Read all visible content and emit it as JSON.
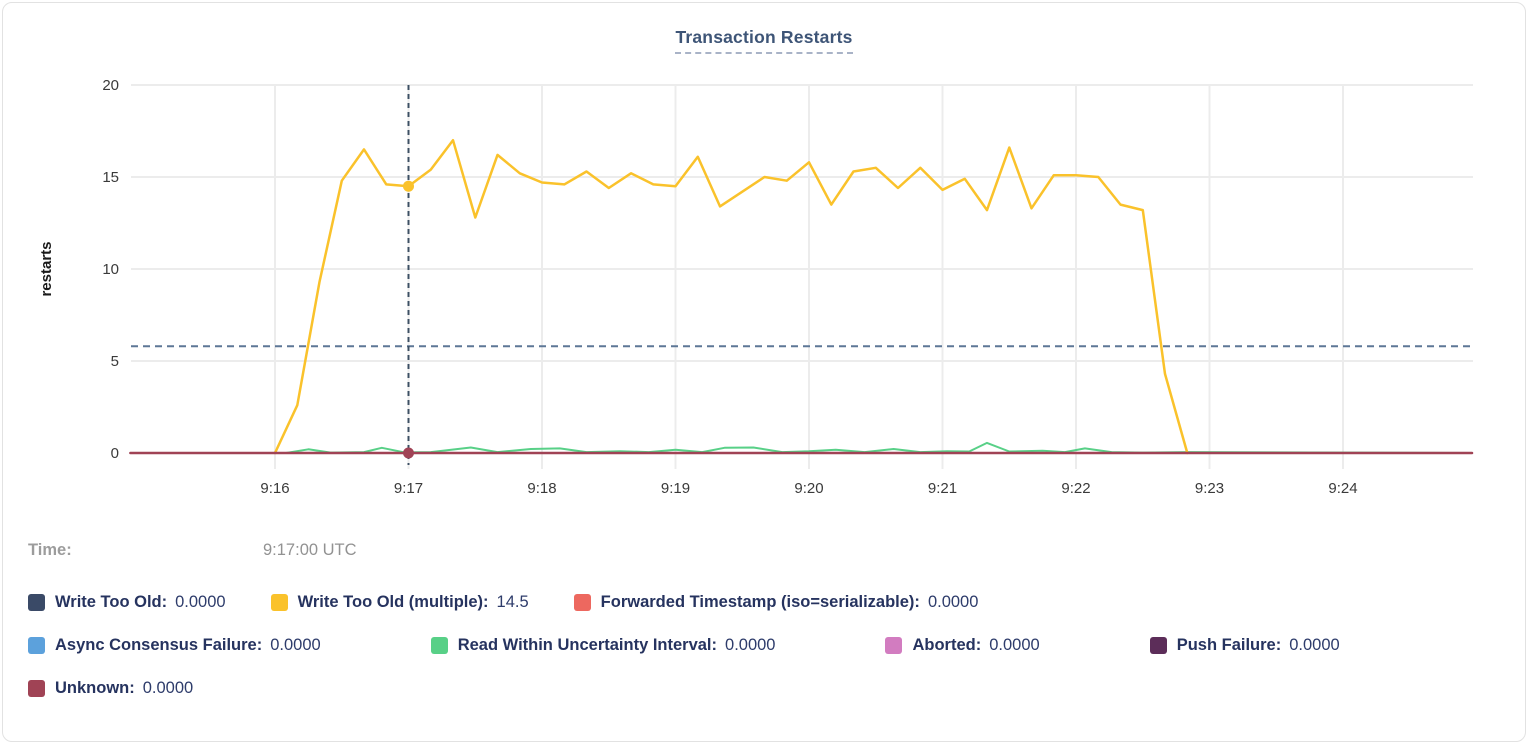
{
  "tooltip": {
    "time_label": "Time:",
    "time_value": "9:17:00 UTC"
  },
  "chart_data": {
    "type": "line",
    "title": "Transaction Restarts",
    "xlabel": "",
    "ylabel": "restarts",
    "ylim": [
      0,
      20
    ],
    "yticks": [
      0,
      5,
      10,
      15,
      20
    ],
    "grid": true,
    "legend_position": "bottom",
    "x_unit": "seconds after 9:15:00 UTC",
    "x_domain": [
      -5,
      598
    ],
    "x_ticks": [
      {
        "t": 60,
        "label": "9:16"
      },
      {
        "t": 120,
        "label": "9:17"
      },
      {
        "t": 180,
        "label": "9:18"
      },
      {
        "t": 240,
        "label": "9:19"
      },
      {
        "t": 300,
        "label": "9:20"
      },
      {
        "t": 360,
        "label": "9:21"
      },
      {
        "t": 420,
        "label": "9:22"
      },
      {
        "t": 480,
        "label": "9:23"
      },
      {
        "t": 540,
        "label": "9:24"
      }
    ],
    "hover": {
      "t": 120,
      "time": "9:17:00 UTC",
      "hline_value": 5.8,
      "vline_color": "#3c4f63",
      "hline_color": "#5d7796",
      "dots": [
        {
          "t": 120,
          "v": 14.5,
          "color": "#FAC22B"
        },
        {
          "t": 120,
          "v": 0,
          "color": "#A04355"
        }
      ]
    },
    "series": [
      {
        "name": "Write Too Old",
        "color": "#3A4A67",
        "display_value": "0.0000",
        "legend_row": 0,
        "legend_col": 0,
        "width": 2,
        "points": [
          [
            -5,
            0
          ],
          [
            598,
            0
          ]
        ]
      },
      {
        "name": "Forwarded Timestamp (iso=serializable)",
        "color": "#ED685F",
        "display_value": "0.0000",
        "legend_row": 0,
        "legend_col": 2,
        "width": 2,
        "points": [
          [
            -5,
            0
          ],
          [
            598,
            0
          ]
        ]
      },
      {
        "name": "Async Consensus Failure",
        "color": "#5CA1DC",
        "display_value": "0.0000",
        "legend_row": 1,
        "legend_col": 0,
        "width": 2,
        "points": [
          [
            -5,
            0
          ],
          [
            598,
            0
          ]
        ]
      },
      {
        "name": "Aborted",
        "color": "#D27CC0",
        "display_value": "0.0000",
        "legend_row": 1,
        "legend_col": 2,
        "width": 2,
        "points": [
          [
            -5,
            0
          ],
          [
            598,
            0
          ]
        ]
      },
      {
        "name": "Push Failure",
        "color": "#5C2D59",
        "display_value": "0.0000",
        "legend_row": 1,
        "legend_col": 3,
        "width": 2,
        "points": [
          [
            -5,
            0
          ],
          [
            598,
            0
          ]
        ]
      },
      {
        "name": "Read Within Uncertainty Interval",
        "color": "#58D087",
        "display_value": "0.0000",
        "legend_row": 1,
        "legend_col": 1,
        "width": 2,
        "points": [
          [
            -5,
            0
          ],
          [
            65,
            0
          ],
          [
            75,
            0.2
          ],
          [
            85,
            0.02
          ],
          [
            100,
            0.05
          ],
          [
            108,
            0.28
          ],
          [
            118,
            0.04
          ],
          [
            130,
            0.05
          ],
          [
            148,
            0.3
          ],
          [
            160,
            0.05
          ],
          [
            175,
            0.22
          ],
          [
            188,
            0.25
          ],
          [
            200,
            0.05
          ],
          [
            215,
            0.1
          ],
          [
            228,
            0.05
          ],
          [
            240,
            0.18
          ],
          [
            252,
            0.05
          ],
          [
            262,
            0.28
          ],
          [
            275,
            0.3
          ],
          [
            288,
            0.05
          ],
          [
            300,
            0.1
          ],
          [
            312,
            0.18
          ],
          [
            325,
            0.05
          ],
          [
            338,
            0.22
          ],
          [
            350,
            0.05
          ],
          [
            362,
            0.1
          ],
          [
            372,
            0.08
          ],
          [
            380,
            0.55
          ],
          [
            390,
            0.08
          ],
          [
            405,
            0.12
          ],
          [
            415,
            0.05
          ],
          [
            424,
            0.25
          ],
          [
            436,
            0.05
          ],
          [
            450,
            0.02
          ],
          [
            470,
            0.05
          ],
          [
            598,
            0
          ]
        ]
      },
      {
        "name": "Write Too Old (multiple)",
        "color": "#FAC22B",
        "display_value": "14.5",
        "legend_row": 0,
        "legend_col": 1,
        "width": 2.5,
        "points": [
          [
            60,
            0
          ],
          [
            70,
            2.6
          ],
          [
            80,
            9.3
          ],
          [
            90,
            14.8
          ],
          [
            100,
            16.5
          ],
          [
            110,
            14.6
          ],
          [
            120,
            14.5
          ],
          [
            130,
            15.4
          ],
          [
            140,
            17.0
          ],
          [
            150,
            12.8
          ],
          [
            160,
            16.2
          ],
          [
            170,
            15.2
          ],
          [
            180,
            14.7
          ],
          [
            190,
            14.6
          ],
          [
            200,
            15.3
          ],
          [
            210,
            14.4
          ],
          [
            220,
            15.2
          ],
          [
            230,
            14.6
          ],
          [
            240,
            14.5
          ],
          [
            250,
            16.1
          ],
          [
            260,
            13.4
          ],
          [
            270,
            14.2
          ],
          [
            280,
            15.0
          ],
          [
            290,
            14.8
          ],
          [
            300,
            15.8
          ],
          [
            310,
            13.5
          ],
          [
            320,
            15.3
          ],
          [
            330,
            15.5
          ],
          [
            340,
            14.4
          ],
          [
            350,
            15.5
          ],
          [
            360,
            14.3
          ],
          [
            370,
            14.9
          ],
          [
            380,
            13.2
          ],
          [
            390,
            16.6
          ],
          [
            400,
            13.3
          ],
          [
            410,
            15.1
          ],
          [
            420,
            15.1
          ],
          [
            430,
            15.0
          ],
          [
            440,
            13.5
          ],
          [
            450,
            13.2
          ],
          [
            460,
            4.3
          ],
          [
            470,
            0
          ]
        ]
      },
      {
        "name": "Unknown",
        "color": "#A04355",
        "display_value": "0.0000",
        "legend_row": 2,
        "legend_col": 0,
        "width": 2.5,
        "points": [
          [
            -5,
            0
          ],
          [
            598,
            0
          ]
        ]
      }
    ]
  }
}
